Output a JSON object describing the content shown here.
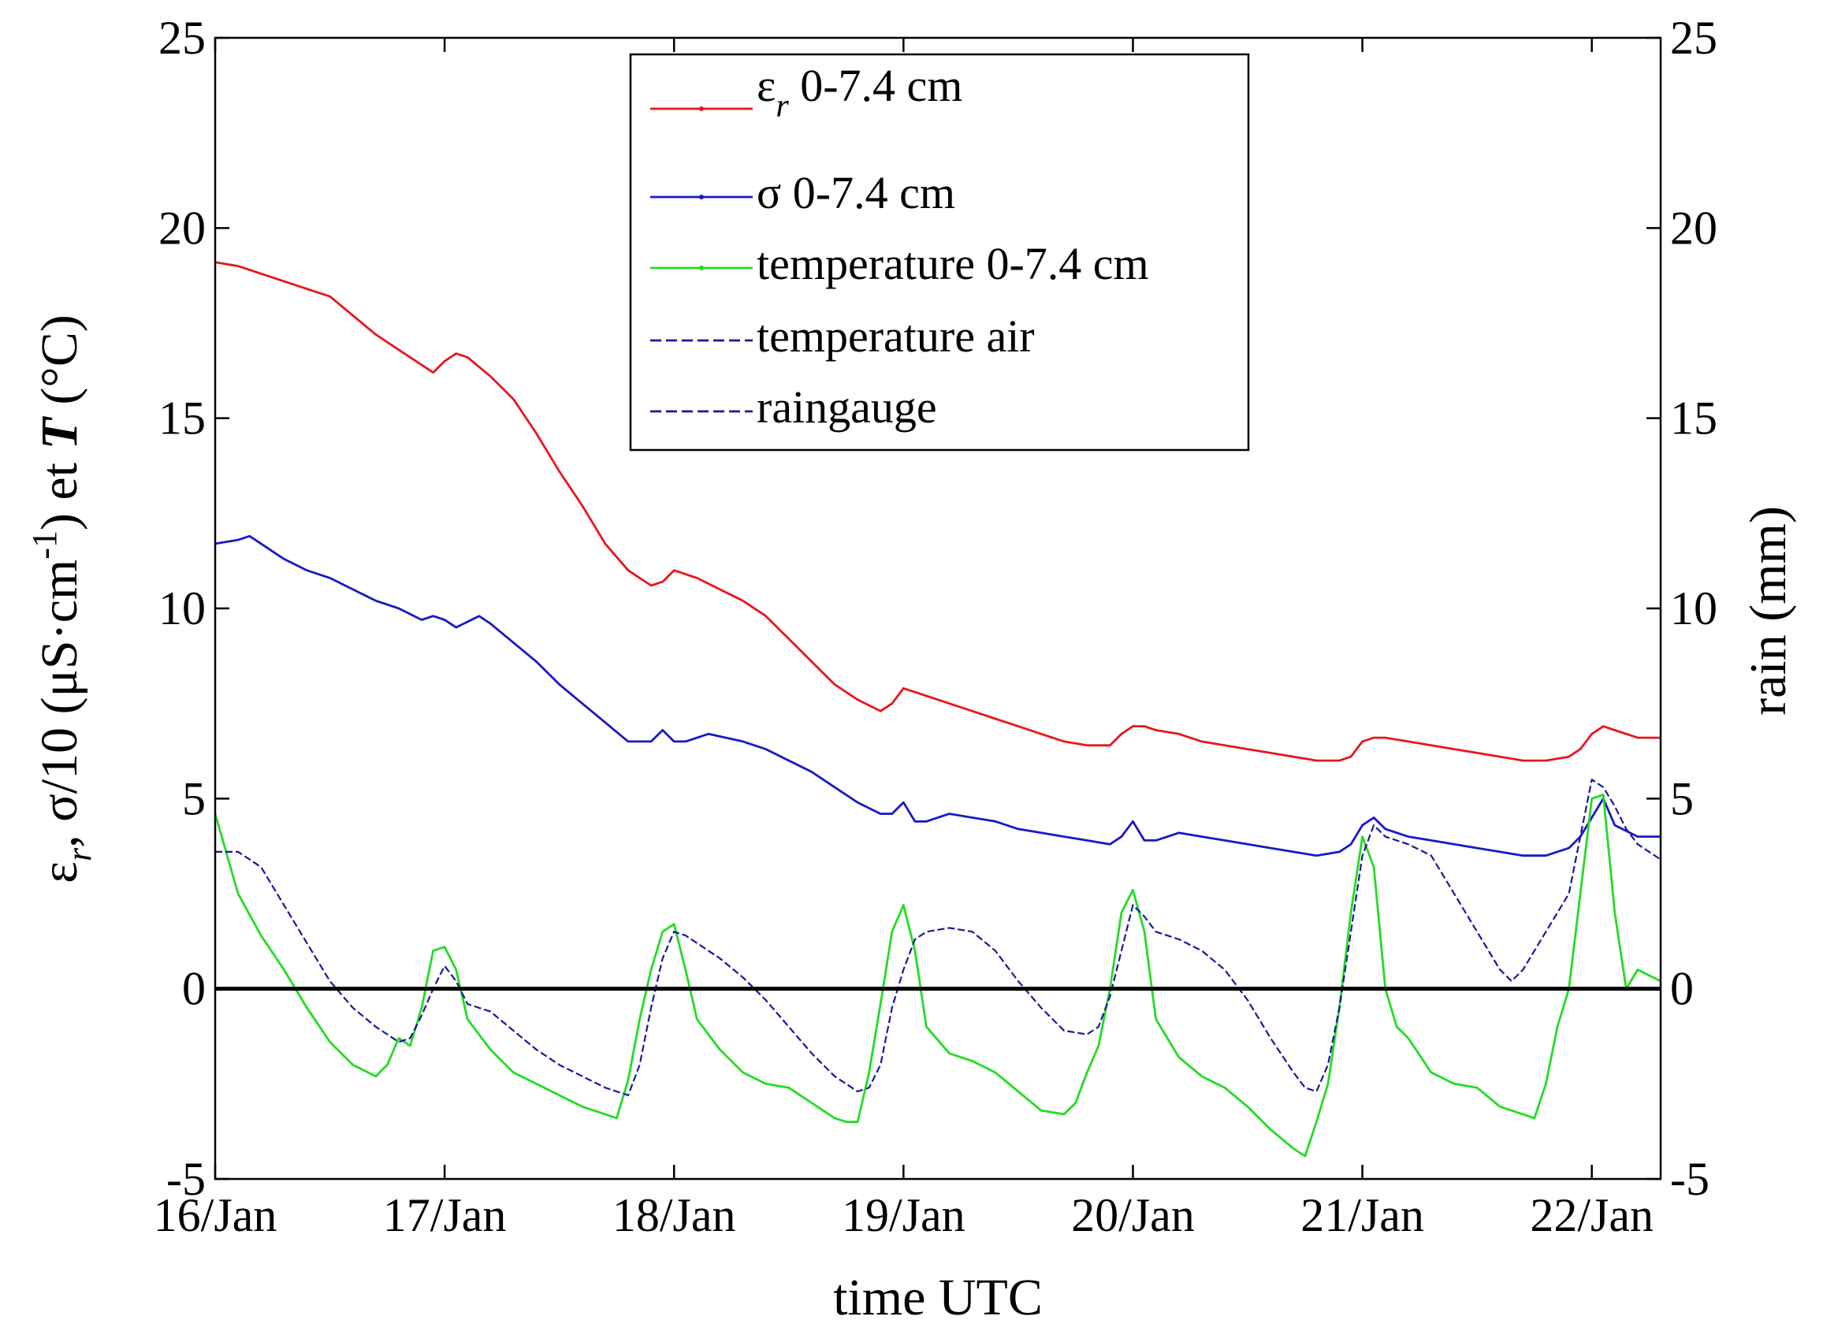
{
  "chart_data": {
    "type": "line",
    "xlabel": "time UTC",
    "ylabel_left": {
      "text": "εr,  σ/10 (μS·cm⁻¹) et  T (°C)",
      "parts": [
        "ε",
        "r",
        ",  σ/10 (μS·cm",
        "-1",
        ") et  ",
        "T",
        " (°C)"
      ]
    },
    "ylabel_right": "rain (mm)",
    "xlim": [
      0,
      6.3
    ],
    "ylim": [
      -5,
      25
    ],
    "y2lim": [
      -5,
      25
    ],
    "xticks": [
      {
        "x": 0,
        "label": "16/Jan"
      },
      {
        "x": 1,
        "label": "17/Jan"
      },
      {
        "x": 2,
        "label": "18/Jan"
      },
      {
        "x": 3,
        "label": "19/Jan"
      },
      {
        "x": 4,
        "label": "20/Jan"
      },
      {
        "x": 5,
        "label": "21/Jan"
      },
      {
        "x": 6,
        "label": "22/Jan"
      }
    ],
    "yticks": [
      -5,
      0,
      5,
      10,
      15,
      20,
      25
    ],
    "y2ticks": [
      -5,
      0,
      5,
      10,
      15,
      20,
      25
    ],
    "zero_line": true,
    "grid": false,
    "legend_position": "top-center",
    "legend": [
      {
        "label_main": "ε",
        "label_sub": "r",
        "label_rest": " 0-7.4 cm",
        "color": "#e8151b",
        "dash": "solid"
      },
      {
        "label_main": "",
        "label_sub": "",
        "label_rest": " σ 0-7.4 cm",
        "color": "#1818c8",
        "dash": "solid"
      },
      {
        "label_main": "",
        "label_sub": "",
        "label_rest": "temperature 0-7.4 cm",
        "color": "#22dd22",
        "dash": "solid"
      },
      {
        "label_main": "",
        "label_sub": "",
        "label_rest": "temperature air",
        "color": "#1818a0",
        "dash": "dashed"
      },
      {
        "label_main": "",
        "label_sub": "",
        "label_rest": "raingauge",
        "color": "#1818a0",
        "dash": "dashed"
      }
    ],
    "series": [
      {
        "name": "εr 0-7.4 cm",
        "color": "#e8151b",
        "x": [
          0,
          0.1,
          0.2,
          0.3,
          0.4,
          0.5,
          0.6,
          0.7,
          0.8,
          0.9,
          0.95,
          1.0,
          1.05,
          1.1,
          1.2,
          1.3,
          1.4,
          1.5,
          1.6,
          1.7,
          1.8,
          1.9,
          1.95,
          2.0,
          2.05,
          2.1,
          2.2,
          2.3,
          2.4,
          2.5,
          2.6,
          2.7,
          2.8,
          2.9,
          2.95,
          3.0,
          3.05,
          3.1,
          3.2,
          3.3,
          3.4,
          3.5,
          3.6,
          3.7,
          3.8,
          3.9,
          3.95,
          4.0,
          4.05,
          4.1,
          4.2,
          4.3,
          4.4,
          4.5,
          4.6,
          4.7,
          4.8,
          4.9,
          4.95,
          5.0,
          5.05,
          5.1,
          5.2,
          5.3,
          5.4,
          5.5,
          5.6,
          5.7,
          5.8,
          5.9,
          5.95,
          6.0,
          6.05,
          6.1,
          6.2,
          6.3
        ],
        "y": [
          19.1,
          19.0,
          18.8,
          18.6,
          18.4,
          18.2,
          17.7,
          17.2,
          16.8,
          16.4,
          16.2,
          16.5,
          16.7,
          16.6,
          16.1,
          15.5,
          14.6,
          13.6,
          12.7,
          11.7,
          11.0,
          10.6,
          10.7,
          11.0,
          10.9,
          10.8,
          10.5,
          10.2,
          9.8,
          9.2,
          8.6,
          8.0,
          7.6,
          7.3,
          7.5,
          7.9,
          7.8,
          7.7,
          7.5,
          7.3,
          7.1,
          6.9,
          6.7,
          6.5,
          6.4,
          6.4,
          6.7,
          6.9,
          6.9,
          6.8,
          6.7,
          6.5,
          6.4,
          6.3,
          6.2,
          6.1,
          6.0,
          6.0,
          6.1,
          6.5,
          6.6,
          6.6,
          6.5,
          6.4,
          6.3,
          6.2,
          6.1,
          6.0,
          6.0,
          6.1,
          6.3,
          6.7,
          6.9,
          6.8,
          6.6,
          6.6
        ]
      },
      {
        "name": "σ 0-7.4 cm",
        "color": "#1818c8",
        "x": [
          0,
          0.1,
          0.15,
          0.2,
          0.3,
          0.4,
          0.5,
          0.6,
          0.7,
          0.8,
          0.9,
          0.95,
          1.0,
          1.05,
          1.15,
          1.2,
          1.3,
          1.4,
          1.5,
          1.6,
          1.7,
          1.8,
          1.9,
          1.95,
          2.0,
          2.05,
          2.15,
          2.3,
          2.4,
          2.5,
          2.6,
          2.7,
          2.8,
          2.9,
          2.95,
          3.0,
          3.05,
          3.1,
          3.2,
          3.3,
          3.4,
          3.5,
          3.6,
          3.7,
          3.8,
          3.9,
          3.95,
          4.0,
          4.05,
          4.1,
          4.2,
          4.3,
          4.4,
          4.5,
          4.6,
          4.7,
          4.8,
          4.9,
          4.95,
          5.0,
          5.05,
          5.1,
          5.2,
          5.3,
          5.4,
          5.5,
          5.6,
          5.7,
          5.8,
          5.9,
          5.95,
          6.0,
          6.05,
          6.1,
          6.2,
          6.3
        ],
        "y": [
          11.7,
          11.8,
          11.9,
          11.7,
          11.3,
          11.0,
          10.8,
          10.5,
          10.2,
          10.0,
          9.7,
          9.8,
          9.7,
          9.5,
          9.8,
          9.6,
          9.1,
          8.6,
          8.0,
          7.5,
          7.0,
          6.5,
          6.5,
          6.8,
          6.5,
          6.5,
          6.7,
          6.5,
          6.3,
          6.0,
          5.7,
          5.3,
          4.9,
          4.6,
          4.6,
          4.9,
          4.4,
          4.4,
          4.6,
          4.5,
          4.4,
          4.2,
          4.1,
          4.0,
          3.9,
          3.8,
          4.0,
          4.4,
          3.9,
          3.9,
          4.1,
          4.0,
          3.9,
          3.8,
          3.7,
          3.6,
          3.5,
          3.6,
          3.8,
          4.3,
          4.5,
          4.2,
          4.0,
          3.9,
          3.8,
          3.7,
          3.6,
          3.5,
          3.5,
          3.7,
          4.0,
          4.5,
          5.0,
          4.3,
          4.0,
          4.0
        ]
      },
      {
        "name": "temperature 0-7.4 cm",
        "color": "#22dd22",
        "x": [
          0,
          0.1,
          0.2,
          0.3,
          0.4,
          0.5,
          0.6,
          0.7,
          0.75,
          0.8,
          0.85,
          0.9,
          0.95,
          1.0,
          1.05,
          1.1,
          1.2,
          1.3,
          1.4,
          1.5,
          1.6,
          1.7,
          1.75,
          1.8,
          1.85,
          1.9,
          1.95,
          2.0,
          2.05,
          2.1,
          2.2,
          2.3,
          2.4,
          2.5,
          2.6,
          2.7,
          2.75,
          2.8,
          2.85,
          2.9,
          2.95,
          3.0,
          3.05,
          3.1,
          3.2,
          3.3,
          3.4,
          3.5,
          3.6,
          3.7,
          3.75,
          3.8,
          3.85,
          3.9,
          3.95,
          4.0,
          4.05,
          4.1,
          4.2,
          4.3,
          4.4,
          4.5,
          4.6,
          4.7,
          4.75,
          4.8,
          4.85,
          4.9,
          4.95,
          5.0,
          5.05,
          5.1,
          5.15,
          5.2,
          5.3,
          5.4,
          5.5,
          5.6,
          5.7,
          5.75,
          5.8,
          5.85,
          5.9,
          5.95,
          6.0,
          6.05,
          6.1,
          6.15,
          6.2,
          6.3
        ],
        "y": [
          4.6,
          2.5,
          1.4,
          0.5,
          -0.5,
          -1.4,
          -2.0,
          -2.3,
          -2.0,
          -1.3,
          -1.5,
          -0.5,
          1.0,
          1.1,
          0.5,
          -0.8,
          -1.6,
          -2.2,
          -2.5,
          -2.8,
          -3.1,
          -3.3,
          -3.4,
          -2.4,
          -0.8,
          0.5,
          1.5,
          1.7,
          0.5,
          -0.8,
          -1.6,
          -2.2,
          -2.5,
          -2.6,
          -3.0,
          -3.4,
          -3.5,
          -3.5,
          -2.2,
          -0.4,
          1.5,
          2.2,
          1.0,
          -1.0,
          -1.7,
          -1.9,
          -2.2,
          -2.7,
          -3.2,
          -3.3,
          -3.0,
          -2.2,
          -1.5,
          0.0,
          2.0,
          2.6,
          1.5,
          -0.8,
          -1.8,
          -2.3,
          -2.6,
          -3.1,
          -3.7,
          -4.2,
          -4.4,
          -3.5,
          -2.5,
          -0.5,
          2.0,
          4.0,
          3.2,
          0.0,
          -1.0,
          -1.3,
          -2.2,
          -2.5,
          -2.6,
          -3.1,
          -3.3,
          -3.4,
          -2.5,
          -1.0,
          0.0,
          2.5,
          5.0,
          5.1,
          2.0,
          0.0,
          0.5,
          0.2
        ]
      },
      {
        "name": "temperature air",
        "color": "#1818a0",
        "dash": "dashed",
        "x": [
          0,
          0.1,
          0.2,
          0.3,
          0.4,
          0.5,
          0.6,
          0.7,
          0.8,
          0.85,
          0.9,
          0.95,
          1.0,
          1.05,
          1.1,
          1.2,
          1.3,
          1.4,
          1.5,
          1.6,
          1.7,
          1.75,
          1.8,
          1.85,
          1.9,
          1.95,
          2.0,
          2.05,
          2.1,
          2.2,
          2.3,
          2.4,
          2.5,
          2.6,
          2.7,
          2.8,
          2.85,
          2.9,
          2.95,
          3.0,
          3.05,
          3.1,
          3.2,
          3.3,
          3.4,
          3.5,
          3.6,
          3.7,
          3.8,
          3.85,
          3.9,
          3.95,
          4.0,
          4.05,
          4.1,
          4.2,
          4.3,
          4.4,
          4.5,
          4.6,
          4.7,
          4.75,
          4.8,
          4.85,
          4.9,
          4.95,
          5.0,
          5.05,
          5.1,
          5.2,
          5.3,
          5.4,
          5.5,
          5.6,
          5.65,
          5.7,
          5.8,
          5.9,
          5.95,
          6.0,
          6.05,
          6.1,
          6.15,
          6.2,
          6.3
        ],
        "y": [
          3.6,
          3.6,
          3.2,
          2.2,
          1.2,
          0.2,
          -0.5,
          -1.0,
          -1.4,
          -1.3,
          -0.7,
          0.0,
          0.6,
          0.2,
          -0.4,
          -0.6,
          -1.1,
          -1.6,
          -2.0,
          -2.3,
          -2.6,
          -2.7,
          -2.8,
          -2.0,
          -0.5,
          0.8,
          1.5,
          1.4,
          1.2,
          0.8,
          0.3,
          -0.3,
          -1.0,
          -1.7,
          -2.3,
          -2.7,
          -2.6,
          -2.0,
          -0.5,
          0.5,
          1.3,
          1.5,
          1.6,
          1.5,
          1.0,
          0.2,
          -0.5,
          -1.1,
          -1.2,
          -1.0,
          -0.2,
          1.0,
          2.2,
          1.9,
          1.5,
          1.3,
          1.0,
          0.5,
          -0.3,
          -1.3,
          -2.2,
          -2.6,
          -2.7,
          -2.0,
          -0.5,
          1.5,
          3.5,
          4.3,
          4.0,
          3.8,
          3.5,
          2.5,
          1.5,
          0.5,
          0.2,
          0.5,
          1.5,
          2.5,
          4.0,
          5.5,
          5.3,
          4.8,
          4.2,
          3.8,
          3.4
        ]
      }
    ]
  }
}
